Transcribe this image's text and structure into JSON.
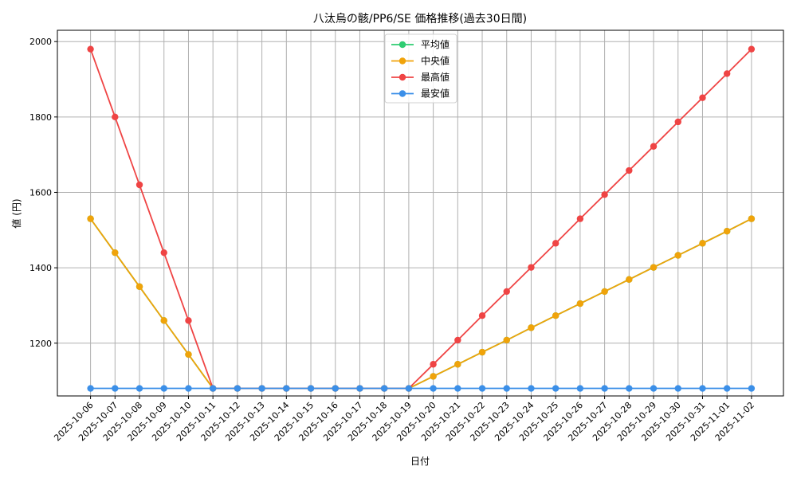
{
  "chart_data": {
    "type": "line",
    "title": "八汰烏の骸/PP6/SE 価格推移(過去30日間)",
    "xlabel": "日付",
    "ylabel": "値 (円)",
    "categories": [
      "2025-10-06",
      "2025-10-07",
      "2025-10-08",
      "2025-10-09",
      "2025-10-10",
      "2025-10-11",
      "2025-10-12",
      "2025-10-13",
      "2025-10-14",
      "2025-10-15",
      "2025-10-16",
      "2025-10-17",
      "2025-10-18",
      "2025-10-19",
      "2025-10-20",
      "2025-10-21",
      "2025-10-22",
      "2025-10-23",
      "2025-10-24",
      "2025-10-25",
      "2025-10-26",
      "2025-10-27",
      "2025-10-28",
      "2025-10-29",
      "2025-10-30",
      "2025-10-31",
      "2025-11-01",
      "2025-11-02"
    ],
    "ylim": [
      1060,
      2030
    ],
    "yticks": [
      1200,
      1400,
      1600,
      1800,
      2000
    ],
    "grid": true,
    "legend_position": "top-center",
    "series": [
      {
        "name": "平均値",
        "color": "#2ecc71",
        "values": [
          1530,
          1440,
          1350,
          1260,
          1170,
          1080,
          1080,
          1080,
          1080,
          1080,
          1080,
          1080,
          1080,
          1080,
          1112,
          1144,
          1176,
          1208,
          1241,
          1273,
          1305,
          1337,
          1369,
          1401,
          1433,
          1465,
          1497,
          1530
        ]
      },
      {
        "name": "中央値",
        "color": "#f0a30a",
        "values": [
          1530,
          1440,
          1350,
          1260,
          1170,
          1080,
          1080,
          1080,
          1080,
          1080,
          1080,
          1080,
          1080,
          1080,
          1112,
          1144,
          1176,
          1208,
          1241,
          1273,
          1305,
          1337,
          1369,
          1401,
          1433,
          1465,
          1497,
          1530
        ]
      },
      {
        "name": "最高値",
        "color": "#ef4444",
        "values": [
          1980,
          1800,
          1620,
          1440,
          1260,
          1080,
          1080,
          1080,
          1080,
          1080,
          1080,
          1080,
          1080,
          1080,
          1144,
          1208,
          1273,
          1337,
          1401,
          1465,
          1530,
          1594,
          1658,
          1722,
          1787,
          1851,
          1915,
          1980
        ]
      },
      {
        "name": "最安値",
        "color": "#3b8fe8",
        "values": [
          1080,
          1080,
          1080,
          1080,
          1080,
          1080,
          1080,
          1080,
          1080,
          1080,
          1080,
          1080,
          1080,
          1080,
          1080,
          1080,
          1080,
          1080,
          1080,
          1080,
          1080,
          1080,
          1080,
          1080,
          1080,
          1080,
          1080,
          1080
        ]
      }
    ]
  }
}
